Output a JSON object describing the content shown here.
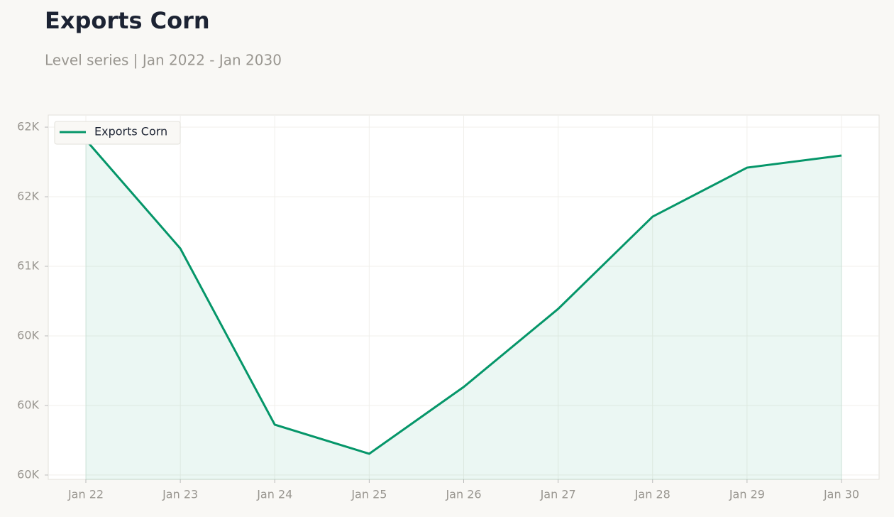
{
  "chart_data": {
    "type": "line",
    "title": "Exports Corn",
    "subtitle": "Level series | Jan 2022 - Jan 2030",
    "x": [
      "Jan 22",
      "Jan 23",
      "Jan 24",
      "Jan 25",
      "Jan 26",
      "Jan 27",
      "Jan 28",
      "Jan 29",
      "Jan 30"
    ],
    "series": [
      {
        "name": "Exports Corn",
        "color": "#059669",
        "values": [
          61908,
          61128,
          59862,
          59653,
          60133,
          60694,
          61357,
          61709,
          61796
        ]
      }
    ],
    "ylim": [
      59469,
      62087
    ],
    "yticks": [
      {
        "value": 59500,
        "label": "60K"
      },
      {
        "value": 60000,
        "label": "60K"
      },
      {
        "value": 60500,
        "label": "60K"
      },
      {
        "value": 61000,
        "label": "61K"
      },
      {
        "value": 61500,
        "label": "62K"
      },
      {
        "value": 62000,
        "label": "62K"
      }
    ],
    "grid": true,
    "area": true,
    "legend": "upper left"
  }
}
